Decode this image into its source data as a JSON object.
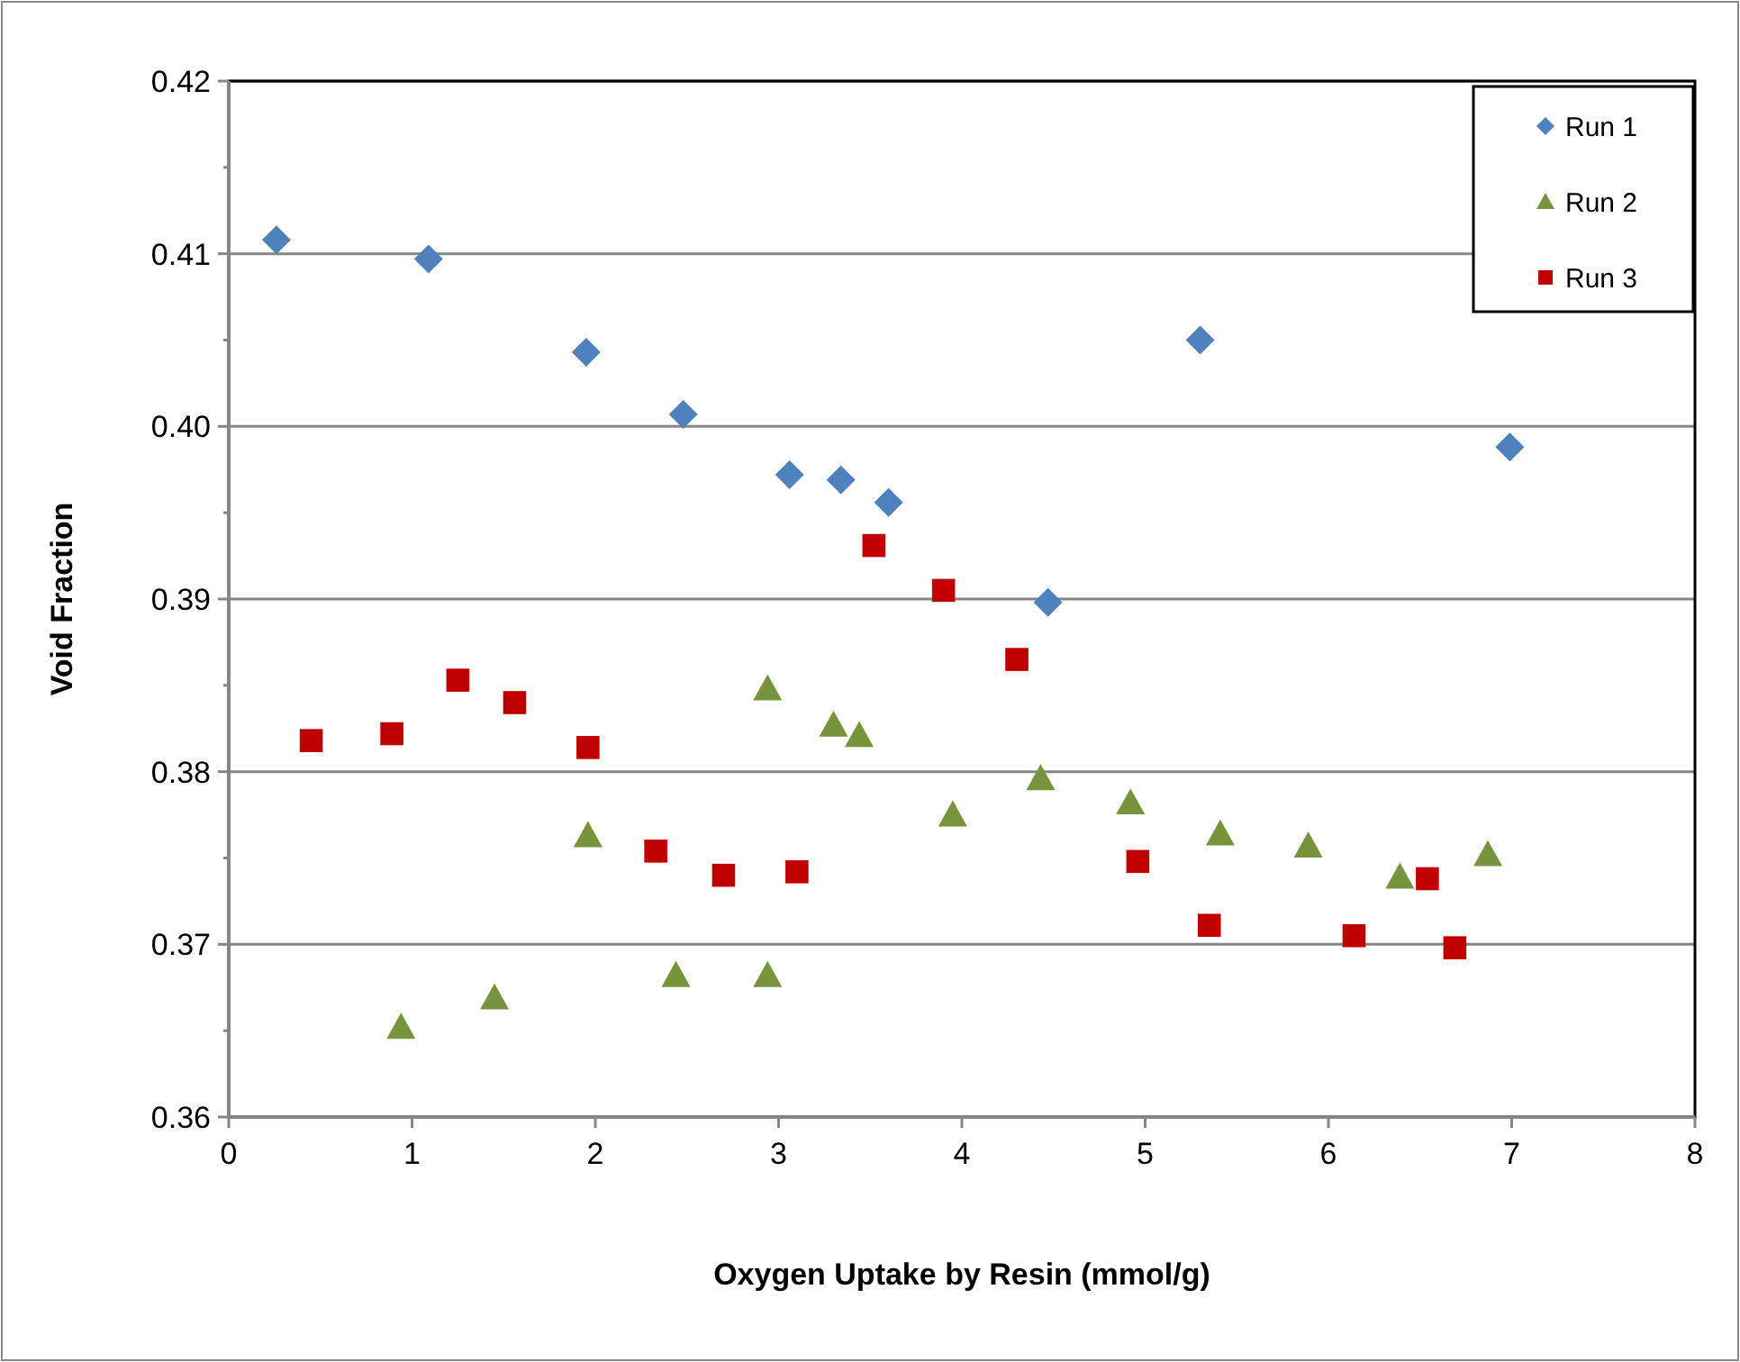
{
  "chart_data": {
    "type": "scatter",
    "xlabel": "Oxygen Uptake by Resin (mmol/g)",
    "ylabel": "Void Fraction",
    "xlim": [
      0,
      8
    ],
    "xticks": [
      0,
      1,
      2,
      3,
      4,
      5,
      6,
      7,
      8
    ],
    "ylim": [
      0.36,
      0.42
    ],
    "yticks": [
      {
        "value": 0.36,
        "label": "0.36"
      },
      {
        "value": 0.37,
        "label": "0.37"
      },
      {
        "value": 0.38,
        "label": "0.38"
      },
      {
        "value": 0.39,
        "label": "0.39"
      },
      {
        "value": 0.4,
        "label": "0.40"
      },
      {
        "value": 0.41,
        "label": "0.41"
      },
      {
        "value": 0.42,
        "label": "0.42"
      }
    ],
    "grid": "y",
    "legend": "top right",
    "series": [
      {
        "name": "Run 1",
        "color": "#4f81bd",
        "marker": "diamond",
        "x": [
          0.26,
          1.09,
          1.95,
          2.48,
          3.06,
          3.34,
          3.6,
          4.47,
          5.3,
          6.99
        ],
        "values": [
          0.4108,
          0.4097,
          0.4043,
          0.4007,
          0.3972,
          0.3969,
          0.3956,
          0.3898,
          0.405,
          0.3988
        ]
      },
      {
        "name": "Run 2",
        "color": "#77933c",
        "marker": "triangle",
        "x": [
          0.94,
          1.45,
          1.96,
          2.44,
          2.94,
          2.94,
          3.3,
          3.44,
          3.95,
          4.43,
          4.92,
          5.41,
          5.89,
          6.39,
          6.87
        ],
        "values": [
          0.3652,
          0.3669,
          0.3763,
          0.3682,
          0.3682,
          0.3848,
          0.3827,
          0.3821,
          0.3775,
          0.3796,
          0.3782,
          0.3764,
          0.3757,
          0.3739,
          0.3752
        ]
      },
      {
        "name": "Run 3",
        "color": "#c00000",
        "marker": "square",
        "x": [
          0.45,
          0.89,
          1.25,
          1.56,
          1.96,
          2.33,
          2.7,
          3.1,
          3.52,
          3.9,
          4.3,
          4.96,
          5.35,
          6.14,
          6.54,
          6.69
        ],
        "values": [
          0.3818,
          0.3822,
          0.3853,
          0.384,
          0.3814,
          0.3754,
          0.374,
          0.3742,
          0.3931,
          0.3905,
          0.3865,
          0.3748,
          0.3711,
          0.3705,
          0.3738,
          0.3698
        ]
      }
    ]
  }
}
